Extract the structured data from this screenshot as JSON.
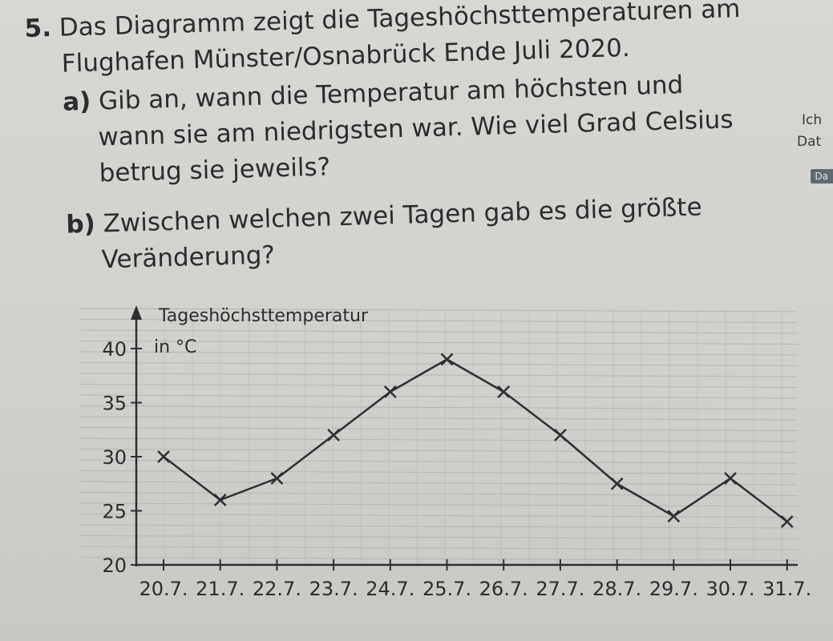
{
  "task": {
    "number": "5.",
    "intro_line1": "Das Diagramm zeigt die Tageshöchsttemperaturen am",
    "intro_line2": "Flughafen Münster/Osnabrück Ende Juli 2020.",
    "a": {
      "label": "a)",
      "line1": "Gib an, wann die Temperatur am höchsten und",
      "line2": "wann sie am niedrigsten war. Wie viel Grad Celsius",
      "line3": "betrug sie jeweils?"
    },
    "b": {
      "label": "b)",
      "line1": "Zwischen welchen zwei Tagen gab es die größte",
      "line2": "Veränderung?"
    }
  },
  "margin": {
    "note1": "Ich",
    "note2": "Dat",
    "badge": "Da"
  },
  "chart_data": {
    "type": "line",
    "ylabel": "Tageshöchsttemperatur",
    "yunit": "in °C",
    "categories": [
      "20.7.",
      "21.7.",
      "22.7.",
      "23.7.",
      "24.7.",
      "25.7.",
      "26.7.",
      "27.7.",
      "28.7.",
      "29.7.",
      "30.7.",
      "31.7."
    ],
    "values": [
      30,
      26,
      28,
      32,
      36,
      39,
      36,
      32,
      27.5,
      24.5,
      28,
      24
    ],
    "yticks": [
      20,
      25,
      30,
      35,
      40
    ],
    "ylim": [
      20,
      40
    ],
    "grid": true,
    "marker": "x",
    "colors": {
      "line": "#2e2e33",
      "grid": "#b6b5b1"
    }
  }
}
